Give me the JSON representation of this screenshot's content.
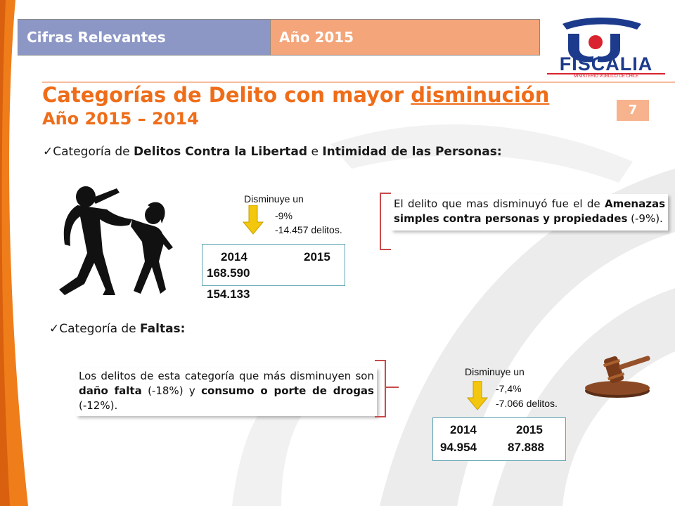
{
  "header": {
    "left_label": "Cifras Relevantes",
    "right_label": "Año 2015"
  },
  "logo": {
    "name": "FISCALIA",
    "subtitle": "MINISTERIO PUBLICO DE CHILE"
  },
  "title": {
    "line1_prefix": "Categorías de Delito con mayor ",
    "line1_emphasis": "disminución",
    "line2": "Año 2015 – 2014"
  },
  "page_number": "7",
  "section1": {
    "check": "✓",
    "prefix": "Categoría de ",
    "category": "Delitos Contra la Libertad",
    "conj": " e ",
    "category2": "Intimidad de las Personas:",
    "decrease_label": "Disminuye un",
    "decrease_pct": "-9%",
    "decrease_count": "-14.457 delitos.",
    "year_a": "2014",
    "year_b": "2015",
    "value_a": "168.590",
    "value_b": "154.133",
    "note_1": "El delito que mas disminuyó  fue el de ",
    "note_bold": "Amenazas simples contra personas y propiedades",
    "note_2": " (-9%)."
  },
  "section2": {
    "check": "✓",
    "prefix": "Categoría de ",
    "category": "Faltas:",
    "note_1": "Los delitos de esta categoría que más disminuyen son ",
    "note_bold1": "daño falta",
    "note_2": " (-18%) y ",
    "note_bold2": "consumo o porte de drogas",
    "note_3": " (-12%).",
    "decrease_label": "Disminuye un",
    "decrease_pct": "-7,4%",
    "decrease_count": "-7.066 delitos.",
    "year_a": "2014",
    "year_b": "2015",
    "value_a": "94.954",
    "value_b": "87.888"
  },
  "colors": {
    "accent_orange": "#ef6d19",
    "header_blue": "#8c97c6",
    "header_peach": "#f4a57a",
    "logo_blue": "#1d3b8c",
    "logo_red": "#d9232e",
    "arrow_yellow": "#f3c70d",
    "bracket_red": "#c84a4a"
  }
}
